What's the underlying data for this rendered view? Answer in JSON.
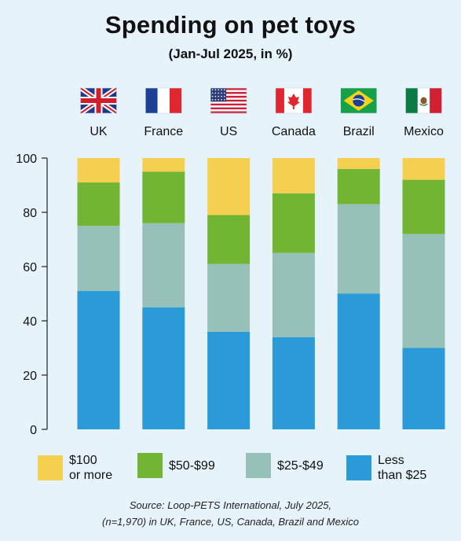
{
  "chart_data": {
    "type": "bar",
    "stacked": true,
    "title": "Spending on pet toys",
    "subtitle": "(Jan-Jul 2025, in %)",
    "categories": [
      "UK",
      "France",
      "US",
      "Canada",
      "Brazil",
      "Mexico"
    ],
    "category_icons": [
      "uk-flag-icon",
      "france-flag-icon",
      "us-flag-icon",
      "canada-flag-icon",
      "brazil-flag-icon",
      "mexico-flag-icon"
    ],
    "series": [
      {
        "name": "Less than $25",
        "color": "#2a9ad9",
        "values": [
          51,
          45,
          36,
          34,
          50,
          30
        ]
      },
      {
        "name": "$25-$49",
        "color": "#97c1b8",
        "values": [
          24,
          31,
          25,
          31,
          33,
          42
        ]
      },
      {
        "name": "$50-$99",
        "color": "#72b533",
        "values": [
          16,
          19,
          18,
          22,
          13,
          20
        ]
      },
      {
        "name": "$100 or more",
        "color": "#f5d050",
        "values": [
          9,
          5,
          21,
          13,
          4,
          8
        ]
      }
    ],
    "ylim": [
      0,
      100
    ],
    "yticks": [
      0,
      20,
      40,
      60,
      80,
      100
    ],
    "grid": false,
    "legend_position": "bottom"
  },
  "legend": [
    {
      "label": "$100\nor more",
      "color": "#f5d050"
    },
    {
      "label": "$50-$99",
      "color": "#72b533"
    },
    {
      "label": "$25-$49",
      "color": "#97c1b8"
    },
    {
      "label": "Less\nthan $25",
      "color": "#2a9ad9"
    }
  ],
  "source_line1": "Source: Loop-PETS International, July 2025,",
  "source_line2": "(n=1,970) in UK, France, US, Canada, Brazil and Mexico"
}
